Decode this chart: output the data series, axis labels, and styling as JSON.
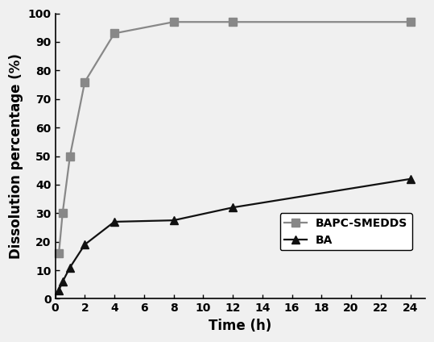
{
  "BAPC_SMEDDS_x": [
    0.25,
    0.5,
    1,
    2,
    4,
    8,
    12,
    24
  ],
  "BAPC_SMEDDS_y": [
    16,
    30,
    50,
    76,
    93,
    97,
    97,
    97
  ],
  "BA_x": [
    0.25,
    0.5,
    1,
    2,
    4,
    8,
    12,
    24
  ],
  "BA_y": [
    3,
    6,
    11,
    19,
    27,
    27.5,
    32,
    42
  ],
  "xlabel": "Time (h)",
  "ylabel": "Dissolution percentage (%)",
  "legend_BAPC": "BAPC-SMEDDS",
  "legend_BA": "BA",
  "xlim": [
    0,
    25
  ],
  "ylim": [
    0,
    100
  ],
  "xticks": [
    0,
    2,
    4,
    6,
    8,
    10,
    12,
    14,
    16,
    18,
    20,
    22,
    24
  ],
  "yticks": [
    0,
    10,
    20,
    30,
    40,
    50,
    60,
    70,
    80,
    90,
    100
  ],
  "line_color_BAPC": "#888888",
  "line_color_BA": "#111111",
  "marker_BAPC": "s",
  "marker_BA": "^",
  "markersize": 7,
  "linewidth": 1.6,
  "label_fontsize": 12,
  "tick_fontsize": 10,
  "legend_fontsize": 10,
  "bg_color": "#f0f0f0",
  "fig_bg_color": "#f0f0f0"
}
